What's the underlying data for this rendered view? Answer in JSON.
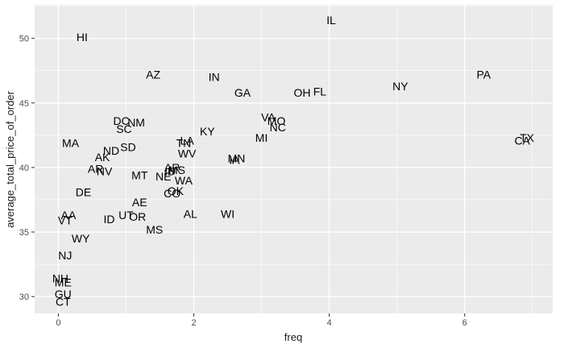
{
  "chart_data": {
    "type": "scatter",
    "title": "",
    "xlabel": "freq",
    "ylabel": "average_total_price_of_order",
    "xlim": [
      -0.35,
      7.3
    ],
    "ylim": [
      28.7,
      52.6
    ],
    "x_ticks": [
      0,
      2,
      4,
      6
    ],
    "y_ticks": [
      30,
      35,
      40,
      45,
      50
    ],
    "grid": true,
    "colors": {
      "panel": "#ebebeb",
      "grid_major": "#ffffff",
      "text": "#000000",
      "axis_text": "#4d4d4d"
    },
    "points": [
      {
        "label": "IL",
        "x": 4.03,
        "y": 51.4
      },
      {
        "label": "HI",
        "x": 0.35,
        "y": 50.1
      },
      {
        "label": "AZ",
        "x": 1.4,
        "y": 47.2
      },
      {
        "label": "IN",
        "x": 2.3,
        "y": 47.0
      },
      {
        "label": "PA",
        "x": 6.28,
        "y": 47.2
      },
      {
        "label": "NY",
        "x": 5.05,
        "y": 46.3
      },
      {
        "label": "GA",
        "x": 2.72,
        "y": 45.8
      },
      {
        "label": "OH",
        "x": 3.6,
        "y": 45.8
      },
      {
        "label": "FL",
        "x": 3.86,
        "y": 45.9
      },
      {
        "label": "VA",
        "x": 3.1,
        "y": 43.9
      },
      {
        "label": "MO",
        "x": 3.22,
        "y": 43.6
      },
      {
        "label": "DC",
        "x": 0.93,
        "y": 43.6
      },
      {
        "label": "NM",
        "x": 1.15,
        "y": 43.5
      },
      {
        "label": "SC",
        "x": 0.97,
        "y": 43.0
      },
      {
        "label": "NC",
        "x": 3.24,
        "y": 43.1
      },
      {
        "label": "KY",
        "x": 2.2,
        "y": 42.8
      },
      {
        "label": "MI",
        "x": 3.0,
        "y": 42.3
      },
      {
        "label": "TX",
        "x": 6.92,
        "y": 42.3
      },
      {
        "label": "CA",
        "x": 6.85,
        "y": 42.1
      },
      {
        "label": "MA",
        "x": 0.18,
        "y": 41.9
      },
      {
        "label": "LA",
        "x": 1.9,
        "y": 42.1
      },
      {
        "label": "TN",
        "x": 1.85,
        "y": 41.9
      },
      {
        "label": "SD",
        "x": 1.03,
        "y": 41.6
      },
      {
        "label": "ND",
        "x": 0.78,
        "y": 41.3
      },
      {
        "label": "WV",
        "x": 1.9,
        "y": 41.1
      },
      {
        "label": "AK",
        "x": 0.65,
        "y": 40.8
      },
      {
        "label": "MN",
        "x": 2.63,
        "y": 40.7
      },
      {
        "label": "IA",
        "x": 2.6,
        "y": 40.6
      },
      {
        "label": "AR",
        "x": 0.55,
        "y": 39.9
      },
      {
        "label": "NV",
        "x": 0.68,
        "y": 39.7
      },
      {
        "label": "AR",
        "x": 1.68,
        "y": 40.0
      },
      {
        "label": "MS",
        "x": 1.75,
        "y": 39.8
      },
      {
        "label": "ID",
        "x": 1.65,
        "y": 39.7
      },
      {
        "label": "MT",
        "x": 1.2,
        "y": 39.4
      },
      {
        "label": "NE",
        "x": 1.55,
        "y": 39.3
      },
      {
        "label": "WA",
        "x": 1.85,
        "y": 39.0
      },
      {
        "label": "DE",
        "x": 0.37,
        "y": 38.1
      },
      {
        "label": "OK",
        "x": 1.73,
        "y": 38.2
      },
      {
        "label": "CO",
        "x": 1.68,
        "y": 38.0
      },
      {
        "label": "AE",
        "x": 1.2,
        "y": 37.3
      },
      {
        "label": "AL",
        "x": 1.95,
        "y": 36.4
      },
      {
        "label": "WI",
        "x": 2.5,
        "y": 36.4
      },
      {
        "label": "UT",
        "x": 1.0,
        "y": 36.3
      },
      {
        "label": "OR",
        "x": 1.17,
        "y": 36.2
      },
      {
        "label": "AA",
        "x": 0.15,
        "y": 36.3
      },
      {
        "label": "VT",
        "x": 0.1,
        "y": 35.9
      },
      {
        "label": "ID",
        "x": 0.75,
        "y": 36.0
      },
      {
        "label": "MS",
        "x": 1.42,
        "y": 35.2
      },
      {
        "label": "WY",
        "x": 0.33,
        "y": 34.5
      },
      {
        "label": "NJ",
        "x": 0.1,
        "y": 33.2
      },
      {
        "label": "NH",
        "x": 0.03,
        "y": 31.4
      },
      {
        "label": "ME",
        "x": 0.07,
        "y": 31.1
      },
      {
        "label": "GU",
        "x": 0.07,
        "y": 30.2
      },
      {
        "label": "CT",
        "x": 0.07,
        "y": 29.6
      }
    ]
  }
}
